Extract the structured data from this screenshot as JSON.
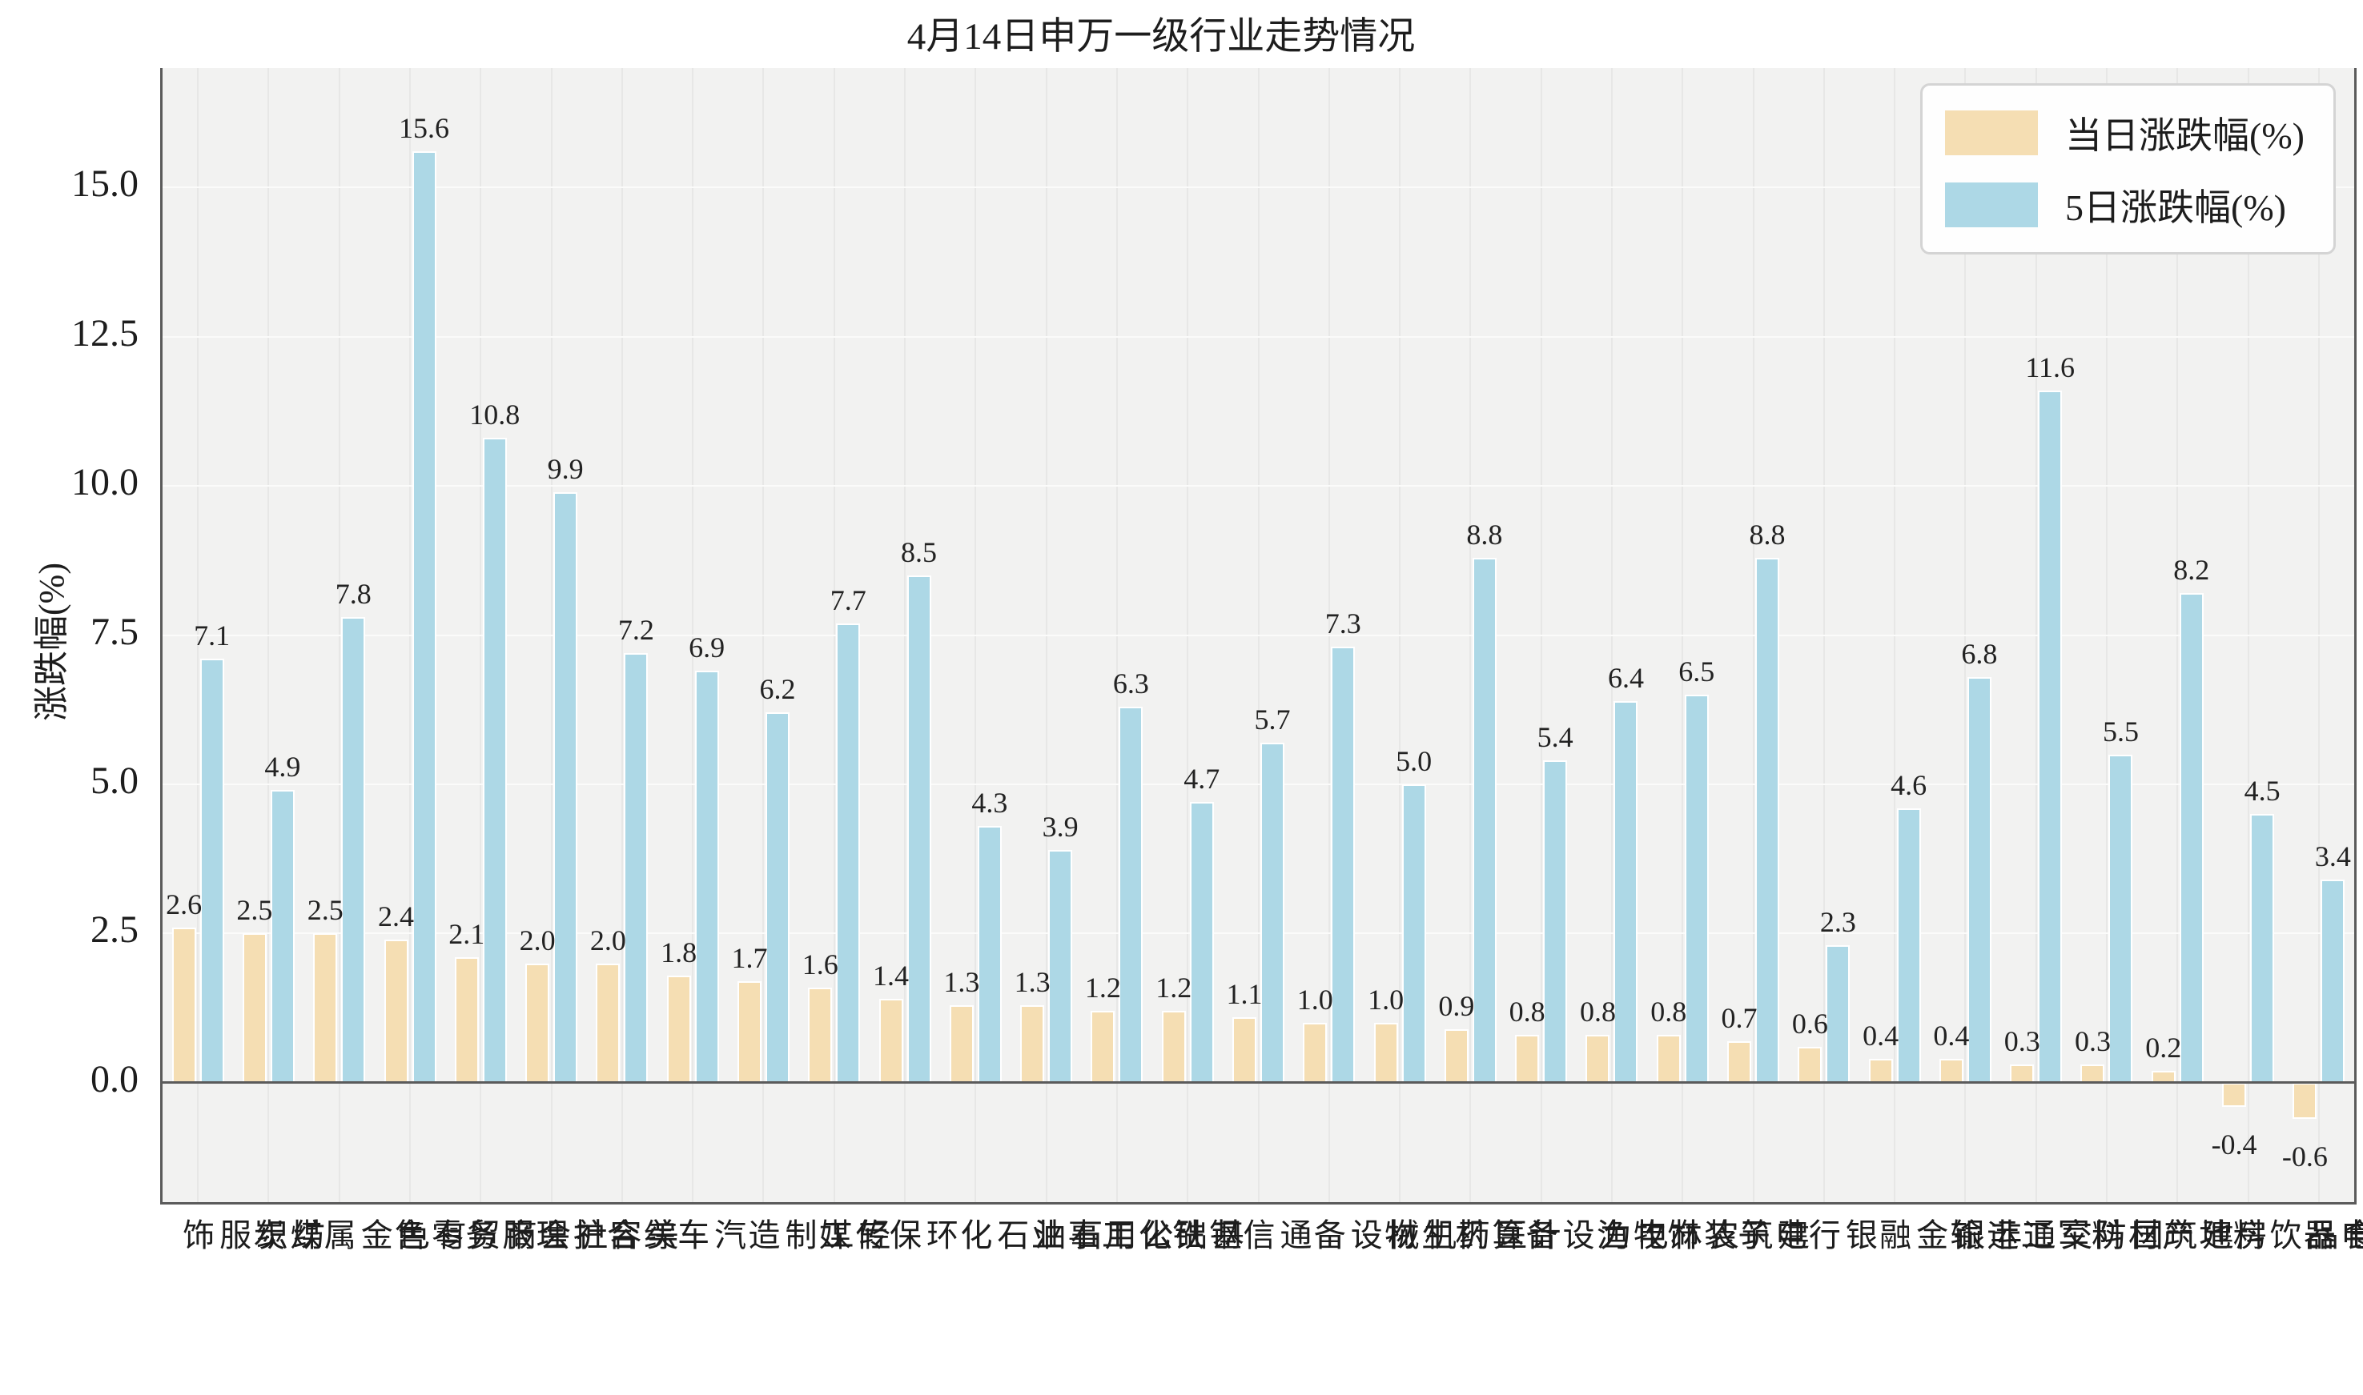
{
  "chart_data": {
    "type": "bar",
    "title": "4月14日申万一级行业走势情况",
    "xlabel": "",
    "ylabel": "涨跌幅(%)",
    "categories": [
      "纺织服饰",
      "煤炭",
      "有色金属",
      "商贸零售",
      "社会服务",
      "美容护理",
      "综合",
      "汽车",
      "轻工制造",
      "传媒",
      "环保",
      "石油石化",
      "公用事业",
      "基础化工",
      "钢铁",
      "通信",
      "机械设备",
      "医药生物",
      "计算机",
      "电力设备",
      "农林牧渔",
      "建筑装饰",
      "电子",
      "银行",
      "非银金融",
      "交通运输",
      "国防军工",
      "建筑材料",
      "房地产",
      "食品饮料",
      "家用电器"
    ],
    "series": [
      {
        "name": "当日涨跌幅(%)",
        "color": "#F5DEB3",
        "values": [
          2.6,
          2.5,
          2.5,
          2.4,
          2.1,
          2.0,
          2.0,
          1.8,
          1.7,
          1.6,
          1.4,
          1.3,
          1.3,
          1.2,
          1.2,
          1.1,
          1.0,
          1.0,
          0.9,
          0.8,
          0.8,
          0.8,
          0.7,
          0.6,
          0.4,
          0.4,
          0.3,
          0.3,
          0.2,
          -0.4,
          -0.6
        ]
      },
      {
        "name": "5日涨跌幅(%)",
        "color": "#ADD8E6",
        "values": [
          7.1,
          4.9,
          7.8,
          15.6,
          10.8,
          9.9,
          7.2,
          6.9,
          6.2,
          7.7,
          8.5,
          4.3,
          3.9,
          6.3,
          4.7,
          5.7,
          7.3,
          5.0,
          8.8,
          5.4,
          6.4,
          6.5,
          8.8,
          2.3,
          4.6,
          6.8,
          11.6,
          5.5,
          8.2,
          4.5,
          3.4
        ]
      }
    ],
    "ylim": [
      -2,
      17
    ],
    "y_ticks": [
      "0.0",
      "2.5",
      "5.0",
      "7.5",
      "10.0",
      "12.5",
      "15.0"
    ],
    "bar_labels_shown": true,
    "grid": "on",
    "legend_position": "upper right",
    "colors": {
      "plot_background": "#f2f2f1",
      "horizontal_grid": "#fbfbfa",
      "vertical_grid": "#e7e7e6",
      "axis_spine": "#5b5b5b",
      "text": "#1d1d1d"
    }
  }
}
